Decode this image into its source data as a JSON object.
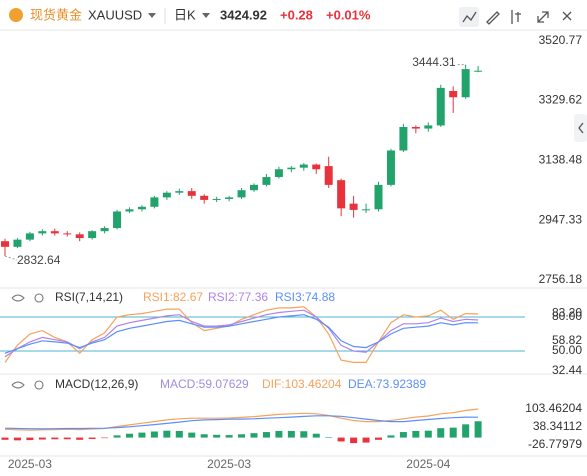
{
  "header": {
    "name": "现货黄金",
    "symbol": "XAUUSD",
    "period": "日K",
    "price": "3424.92",
    "change": "+0.28",
    "change_pct": "+0.01%"
  },
  "chart_data": [
    {
      "type": "candlestick",
      "up_color": "#22a36b",
      "down_color": "#e8323c",
      "categories": [
        null,
        null,
        "2025-03",
        null,
        null,
        null,
        null,
        null,
        null,
        null,
        null,
        null,
        null,
        null,
        null,
        null,
        null,
        null,
        "2025-03",
        null,
        null,
        null,
        null,
        null,
        null,
        null,
        null,
        null,
        null,
        null,
        null,
        null,
        null,
        null,
        "2025-04",
        null,
        null,
        null,
        null
      ],
      "open": [
        2880,
        2862,
        2885,
        2905,
        2912,
        2905,
        2902,
        2890,
        2912,
        2922,
        2975,
        2982,
        2990,
        3020,
        3035,
        3040,
        3025,
        3012,
        3015,
        3020,
        3043,
        3060,
        3085,
        3110,
        3115,
        3125,
        3120,
        3075,
        3000,
        2980,
        2982,
        3060,
        3170,
        3245,
        3240,
        3250,
        3360,
        3340,
        3424.64
      ],
      "high": [
        2888,
        2890,
        2910,
        2918,
        2920,
        2912,
        2908,
        2915,
        2928,
        2980,
        2988,
        2995,
        3025,
        3040,
        3048,
        3050,
        3030,
        3022,
        3025,
        3050,
        3065,
        3095,
        3118,
        3120,
        3130,
        3128,
        3150,
        3080,
        3025,
        3000,
        3070,
        3175,
        3255,
        3250,
        3260,
        3380,
        3375,
        3444.31,
        3440
      ],
      "low": [
        2832.64,
        2858,
        2880,
        2898,
        2898,
        2895,
        2880,
        2885,
        2905,
        2918,
        2970,
        2975,
        2985,
        3012,
        3028,
        3015,
        3000,
        3005,
        3008,
        3015,
        3038,
        3055,
        3080,
        3100,
        3105,
        3095,
        3050,
        2960,
        2955,
        2970,
        2975,
        3055,
        3165,
        3225,
        3230,
        3245,
        3290,
        3335,
        3420
      ],
      "close": [
        2862,
        2885,
        2905,
        2912,
        2905,
        2902,
        2890,
        2912,
        2922,
        2975,
        2982,
        2990,
        3020,
        3035,
        3040,
        3025,
        3012,
        3015,
        3020,
        3043,
        3060,
        3085,
        3110,
        3115,
        3125,
        3110,
        3060,
        2985,
        2980,
        2982,
        3060,
        3170,
        3245,
        3240,
        3250,
        3370,
        3340,
        3430,
        3424.92
      ],
      "ylim": [
        2740,
        3555
      ],
      "yticks": [
        3520.77,
        3329.62,
        3138.48,
        2947.33,
        2756.18
      ]
    },
    {
      "type": "line",
      "title": "RSI(7,14,21)",
      "series": [
        {
          "name": "RSI1:82.67",
          "color": "#f5a25d",
          "values": [
            40,
            55,
            65,
            68,
            62,
            58,
            48,
            60,
            66,
            80,
            82,
            83,
            85,
            87,
            87,
            75,
            68,
            70,
            72,
            78,
            82,
            86,
            88,
            88,
            89,
            80,
            65,
            42,
            40,
            40,
            58,
            75,
            82,
            80,
            81,
            86,
            78,
            83,
            82.67
          ]
        },
        {
          "name": "RSI2:77.36",
          "color": "#b084e8",
          "values": [
            45,
            52,
            58,
            62,
            60,
            58,
            52,
            58,
            62,
            72,
            75,
            77,
            79,
            81,
            82,
            76,
            72,
            72,
            73,
            76,
            79,
            82,
            84,
            85,
            86,
            80,
            70,
            55,
            50,
            49,
            58,
            68,
            74,
            74,
            75,
            79,
            76,
            78,
            77.36
          ]
        },
        {
          "name": "RSI3:74.88",
          "color": "#5b8ff9",
          "values": [
            48,
            52,
            56,
            59,
            58,
            57,
            53,
            57,
            60,
            67,
            70,
            72,
            74,
            76,
            77,
            74,
            71,
            71,
            72,
            74,
            76,
            78,
            80,
            81,
            82,
            78,
            71,
            59,
            54,
            53,
            58,
            65,
            70,
            71,
            72,
            75,
            73,
            75,
            74.88
          ]
        }
      ],
      "ylim": [
        31.5,
        103.8
      ],
      "yticks": [
        {
          "value": 80,
          "label": "80.00"
        },
        {
          "value": 50,
          "label": "50.00"
        }
      ],
      "grid": true,
      "grid_color": "#4fb3d0",
      "axis_labels": [
        {
          "value": 83.2,
          "label": "83.20"
        },
        {
          "value": 58.82,
          "label": "58.82"
        },
        {
          "value": 32.44,
          "label": "32.44"
        }
      ]
    },
    {
      "type": "macd",
      "title": "MACD(12,26,9)",
      "up_color": "#22a36b",
      "down_color": "#e8323c",
      "histogram": {
        "name": "MACD:59.07629",
        "color": "#a08ce0",
        "values": [
          -8,
          -10,
          -9,
          -7,
          -6,
          -6,
          -8,
          -5,
          -2,
          8,
          14,
          18,
          22,
          25,
          24,
          18,
          12,
          10,
          9,
          12,
          16,
          20,
          24,
          24,
          23,
          14,
          2,
          -14,
          -20,
          -18,
          -8,
          8,
          20,
          24,
          25,
          34,
          36,
          48,
          59.07629
        ]
      },
      "series": [
        {
          "name": "DIF:103.46204",
          "color": "#f5a25d",
          "values": [
            30,
            28,
            27,
            28,
            29,
            30,
            29,
            31,
            33,
            40,
            46,
            52,
            58,
            64,
            68,
            70,
            70,
            70,
            71,
            73,
            76,
            80,
            84,
            86,
            88,
            86,
            80,
            70,
            62,
            58,
            58,
            62,
            68,
            74,
            78,
            86,
            90,
            98,
            103.46204
          ]
        },
        {
          "name": "DEA:73.92389",
          "color": "#5b8ff9",
          "values": [
            34,
            33,
            32,
            31.5,
            32,
            33,
            33,
            33.5,
            34,
            36,
            39,
            43,
            47,
            51.5,
            56,
            61,
            64,
            65,
            66.5,
            67,
            68,
            70,
            72,
            74,
            76.5,
            79,
            79,
            77,
            72,
            67,
            62,
            58,
            58,
            62,
            65.5,
            69,
            72,
            74,
            73.92389
          ]
        }
      ],
      "ylim": [
        -63,
        215.6
      ],
      "yticks": [
        103.46204,
        38.34112,
        -26.77979
      ]
    }
  ]
}
